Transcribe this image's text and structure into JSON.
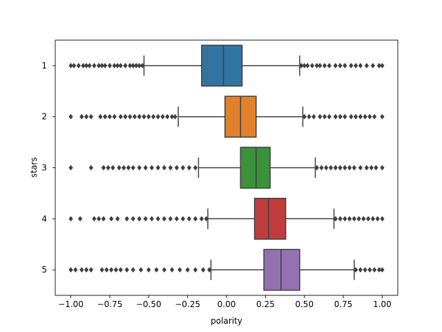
{
  "chart_data": {
    "type": "boxplot",
    "orientation": "horizontal",
    "title": "",
    "xlabel": "polarity",
    "ylabel": "stars",
    "xlim": [
      -1.1,
      1.1
    ],
    "xticks": [
      -1.0,
      -0.75,
      -0.5,
      -0.25,
      0.0,
      0.25,
      0.5,
      0.75,
      1.0
    ],
    "xtick_labels": [
      "−1.00",
      "−0.75",
      "−0.50",
      "−0.25",
      "0.00",
      "0.25",
      "0.50",
      "0.75",
      "1.00"
    ],
    "categories": [
      "1",
      "2",
      "3",
      "4",
      "5"
    ],
    "colors": [
      "#3274a1",
      "#e1812c",
      "#3a923a",
      "#c03d3e",
      "#9372b2"
    ],
    "boxes": [
      {
        "category": "1",
        "whisker_low": -0.53,
        "q1": -0.16,
        "median": -0.02,
        "q3": 0.1,
        "whisker_high": 0.47,
        "outliers_low": [
          -1.0,
          -0.98,
          -0.95,
          -0.92,
          -0.9,
          -0.88,
          -0.85,
          -0.82,
          -0.8,
          -0.78,
          -0.75,
          -0.72,
          -0.7,
          -0.68,
          -0.65,
          -0.62,
          -0.6,
          -0.58,
          -0.56,
          -0.54
        ],
        "outliers_high": [
          0.48,
          0.5,
          0.52,
          0.55,
          0.58,
          0.6,
          0.63,
          0.66,
          0.7,
          0.73,
          0.76,
          0.8,
          0.83,
          0.86,
          0.9,
          0.94,
          0.98,
          1.0
        ]
      },
      {
        "category": "2",
        "whisker_low": -0.31,
        "q1": -0.01,
        "median": 0.09,
        "q3": 0.19,
        "whisker_high": 0.49,
        "outliers_low": [
          -1.0,
          -0.93,
          -0.9,
          -0.87,
          -0.81,
          -0.78,
          -0.75,
          -0.72,
          -0.68,
          -0.65,
          -0.62,
          -0.59,
          -0.56,
          -0.53,
          -0.5,
          -0.47,
          -0.44,
          -0.41,
          -0.38,
          -0.35,
          -0.33
        ],
        "outliers_high": [
          0.5,
          0.53,
          0.56,
          0.6,
          0.63,
          0.66,
          0.7,
          0.73,
          0.76,
          0.8,
          0.83,
          0.86,
          0.89,
          0.92,
          0.95,
          1.0
        ]
      },
      {
        "category": "3",
        "whisker_low": -0.18,
        "q1": 0.09,
        "median": 0.19,
        "q3": 0.28,
        "whisker_high": 0.57,
        "outliers_low": [
          -1.0,
          -0.87,
          -0.79,
          -0.76,
          -0.73,
          -0.69,
          -0.66,
          -0.63,
          -0.6,
          -0.56,
          -0.52,
          -0.48,
          -0.44,
          -0.4,
          -0.36,
          -0.32,
          -0.28,
          -0.24,
          -0.2
        ],
        "outliers_high": [
          0.58,
          0.61,
          0.64,
          0.67,
          0.7,
          0.73,
          0.76,
          0.79,
          0.82,
          0.86,
          0.9,
          0.93,
          0.96,
          1.0
        ]
      },
      {
        "category": "4",
        "whisker_low": -0.12,
        "q1": 0.18,
        "median": 0.27,
        "q3": 0.38,
        "whisker_high": 0.69,
        "outliers_low": [
          -1.0,
          -0.94,
          -0.85,
          -0.82,
          -0.79,
          -0.74,
          -0.7,
          -0.64,
          -0.6,
          -0.56,
          -0.52,
          -0.48,
          -0.44,
          -0.4,
          -0.36,
          -0.32,
          -0.28,
          -0.24,
          -0.2,
          -0.16,
          -0.13
        ],
        "outliers_high": [
          0.7,
          0.73,
          0.76,
          0.79,
          0.82,
          0.85,
          0.88,
          0.91,
          0.94,
          0.97,
          1.0
        ]
      },
      {
        "category": "5",
        "whisker_low": -0.1,
        "q1": 0.24,
        "median": 0.35,
        "q3": 0.47,
        "whisker_high": 0.82,
        "outliers_low": [
          -1.0,
          -0.97,
          -0.93,
          -0.9,
          -0.87,
          -0.8,
          -0.77,
          -0.74,
          -0.71,
          -0.68,
          -0.64,
          -0.6,
          -0.55,
          -0.5,
          -0.45,
          -0.4,
          -0.35,
          -0.3,
          -0.25,
          -0.2,
          -0.15,
          -0.11
        ],
        "outliers_high": [
          0.83,
          0.86,
          0.89,
          0.92,
          0.95,
          0.98,
          1.0
        ]
      }
    ]
  }
}
